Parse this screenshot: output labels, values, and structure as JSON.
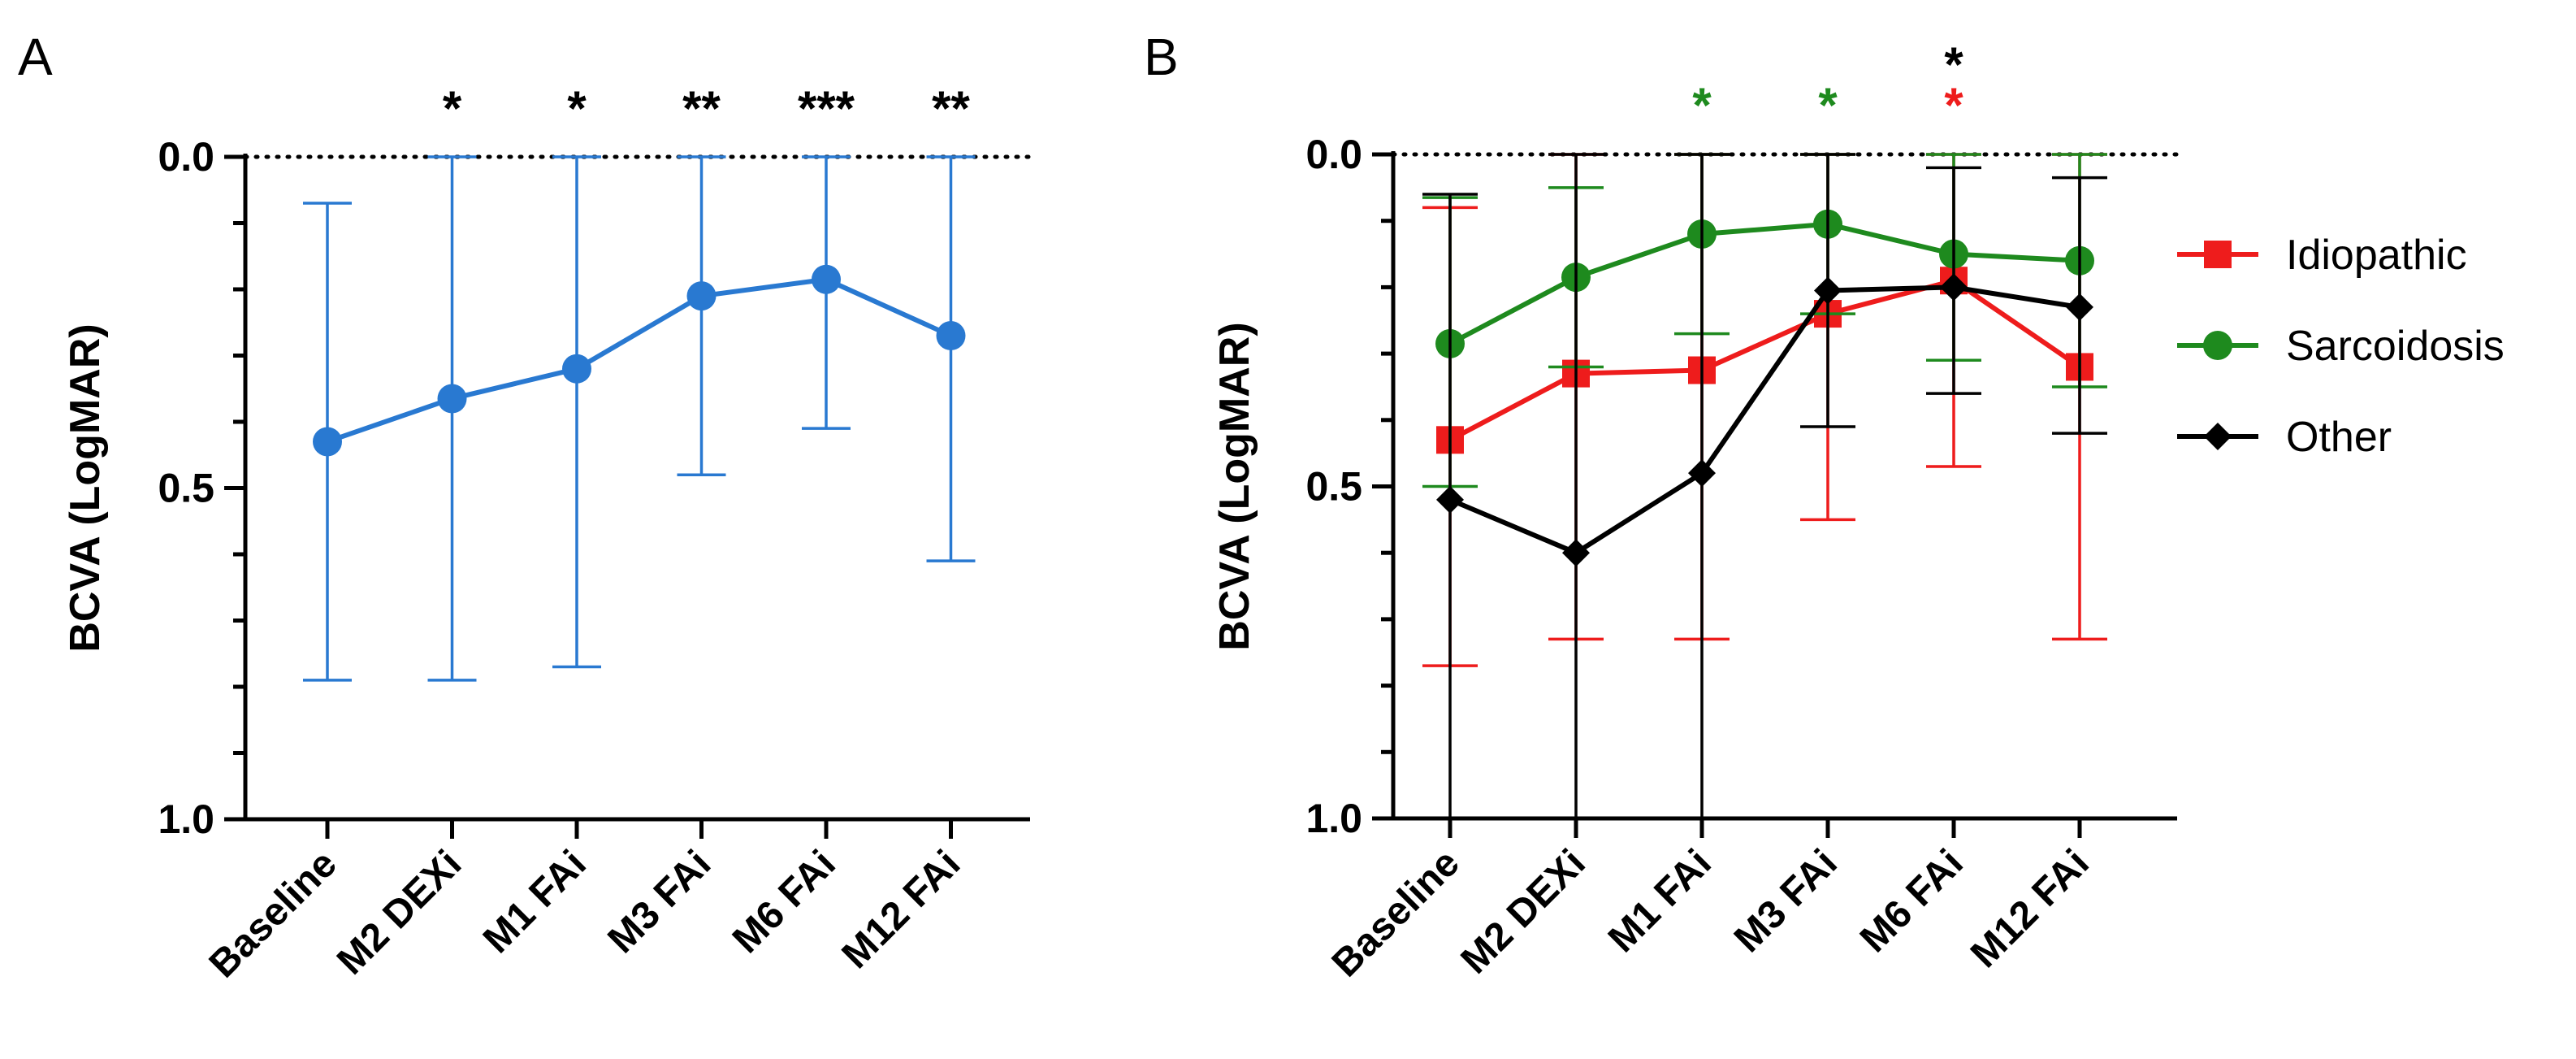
{
  "chart_data": [
    {
      "type": "line",
      "panel_label": "A",
      "title": "",
      "xlabel": "",
      "ylabel": "BCVA (LogMAR)",
      "ylim": [
        1.0,
        0.0
      ],
      "y_inverted": true,
      "yticks": [
        0.0,
        0.5,
        1.0
      ],
      "ytick_labels": [
        "0.0",
        "0.5",
        "1.0"
      ],
      "reference_line": 0.0,
      "categories": [
        "Baseline",
        "M2 DEXi",
        "M1 FAi",
        "M3 FAi",
        "M6 FAi",
        "M12 FAi"
      ],
      "series": [
        {
          "name": "All",
          "color": "#2979d1",
          "marker": "circle",
          "values": [
            0.43,
            0.365,
            0.32,
            0.21,
            0.185,
            0.27
          ],
          "error_lower": [
            0.07,
            0.0,
            0.0,
            0.0,
            0.0,
            0.0
          ],
          "error_upper": [
            0.79,
            0.79,
            0.77,
            0.48,
            0.41,
            0.61
          ]
        }
      ],
      "significance": [
        "",
        "*",
        "*",
        "**",
        "***",
        "**"
      ],
      "significance_color": "#000000"
    },
    {
      "type": "line",
      "panel_label": "B",
      "title": "",
      "xlabel": "",
      "ylabel": "BCVA (LogMAR)",
      "ylim": [
        1.0,
        0.0
      ],
      "y_inverted": true,
      "yticks": [
        0.0,
        0.5,
        1.0
      ],
      "ytick_labels": [
        "0.0",
        "0.5",
        "1.0"
      ],
      "reference_line": 0.0,
      "categories": [
        "Baseline",
        "M2 DEXi",
        "M1 FAi",
        "M3 FAi",
        "M6 FAi",
        "M12 FAi"
      ],
      "legend_position": "right",
      "series": [
        {
          "name": "Idiopathic",
          "color": "#ee1c1c",
          "marker": "square",
          "values": [
            0.43,
            0.33,
            0.325,
            0.24,
            0.19,
            0.32
          ],
          "error_lower": [
            0.08,
            0.0,
            0.0,
            0.0,
            0.0,
            0.0
          ],
          "error_upper": [
            0.77,
            0.73,
            0.73,
            0.55,
            0.47,
            0.73
          ]
        },
        {
          "name": "Sarcoidosis",
          "color": "#1e8a1e",
          "marker": "circle",
          "values": [
            0.285,
            0.185,
            0.12,
            0.105,
            0.15,
            0.16
          ],
          "error_lower": [
            0.065,
            0.05,
            0.0,
            0.0,
            0.0,
            0.0
          ],
          "error_upper": [
            0.5,
            0.32,
            0.27,
            0.24,
            0.31,
            0.35
          ]
        },
        {
          "name": "Other",
          "color": "#000000",
          "marker": "diamond",
          "values": [
            0.52,
            0.6,
            0.48,
            0.205,
            0.2,
            0.23
          ],
          "error_lower": [
            0.06,
            0.0,
            0.0,
            0.0,
            0.02,
            0.035
          ],
          "error_upper": [
            1.0,
            1.0,
            1.0,
            0.41,
            0.36,
            0.42
          ]
        }
      ],
      "significance_marks": [
        {
          "category": "M1 FAi",
          "rows": [
            {
              "symbol": "*",
              "color": "#1e8a1e"
            }
          ]
        },
        {
          "category": "M3 FAi",
          "rows": [
            {
              "symbol": "*",
              "color": "#1e8a1e"
            }
          ]
        },
        {
          "category": "M6 FAi",
          "rows": [
            {
              "symbol": "*",
              "color": "#000000"
            },
            {
              "symbol": "*",
              "color": "#ee1c1c"
            }
          ]
        }
      ]
    }
  ]
}
